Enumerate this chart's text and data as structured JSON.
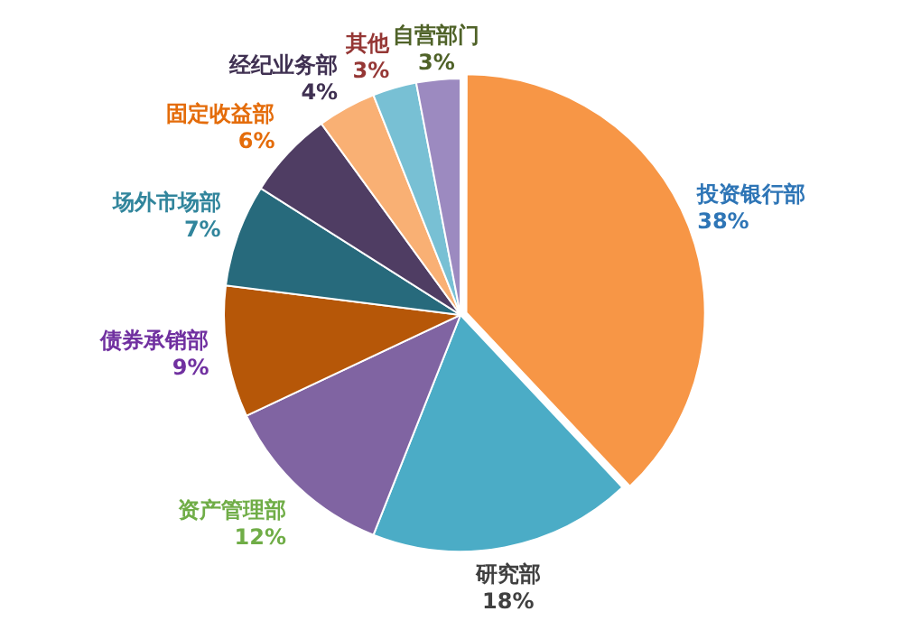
{
  "chart_data": {
    "type": "pie",
    "categories": [
      "投资银行部",
      "研究部",
      "资产管理部",
      "债券承销部",
      "场外市场部",
      "固定收益部",
      "经纪业务部",
      "其他",
      "自营部门"
    ],
    "values": [
      38,
      18,
      12,
      9,
      7,
      6,
      4,
      3,
      3
    ],
    "colors": [
      "#f79646",
      "#4bacc6",
      "#8064a2",
      "#b65708",
      "#276a7c",
      "#4f3d63",
      "#f9b074",
      "#78c0d4",
      "#9c8ac0"
    ],
    "value_labels": [
      "38%",
      "18%",
      "12%",
      "9%",
      "7%",
      "6%",
      "4%",
      "3%",
      "3%"
    ],
    "legend": false
  }
}
